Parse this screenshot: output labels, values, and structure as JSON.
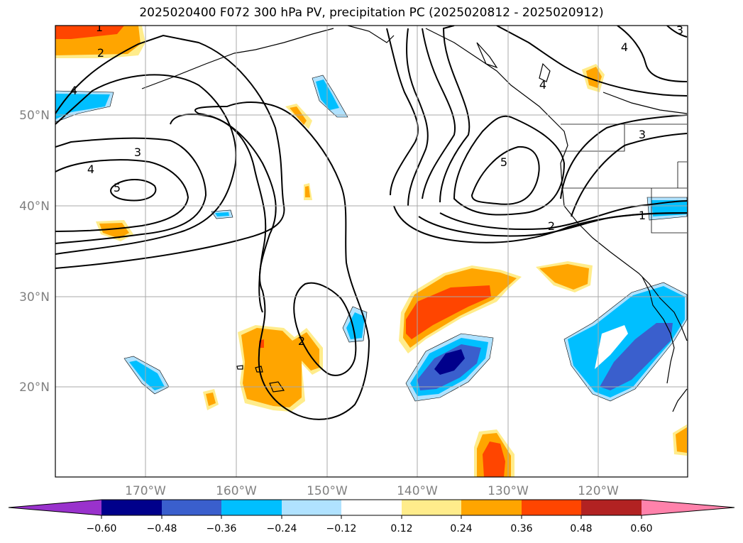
{
  "title": "2025020400 F072 300 hPa PV, precipitation PC (2025020812 - 2025020912)",
  "lat_labels": [
    "50°N",
    "40°N",
    "30°N",
    "20°N"
  ],
  "lon_labels": [
    "170°W",
    "160°W",
    "150°W",
    "140°W",
    "130°W",
    "120°W"
  ],
  "contour_labels": [
    "1",
    "2",
    "4",
    "3",
    "4",
    "5",
    "5",
    "4",
    "4",
    "3",
    "2",
    "1",
    "2",
    "3"
  ],
  "colorbar": {
    "ticks": [
      "−0.60",
      "−0.48",
      "−0.36",
      "−0.24",
      "−0.12",
      "0.12",
      "0.24",
      "0.36",
      "0.48",
      "0.60"
    ],
    "colors": [
      "#9932cc",
      "#00008b",
      "#3a5fcd",
      "#00bfff",
      "#b0e2ff",
      "#ffffff",
      "#ffec8b",
      "#ffa500",
      "#ff4500",
      "#b22222",
      "#ff82ab"
    ]
  },
  "fill_colors": {
    "pos1": "#ffec8b",
    "pos2": "#ffa500",
    "pos3": "#ff4500",
    "neg1": "#b0e2ff",
    "neg2": "#00bfff",
    "neg3": "#3a5fcd",
    "neg4": "#00008b"
  }
}
